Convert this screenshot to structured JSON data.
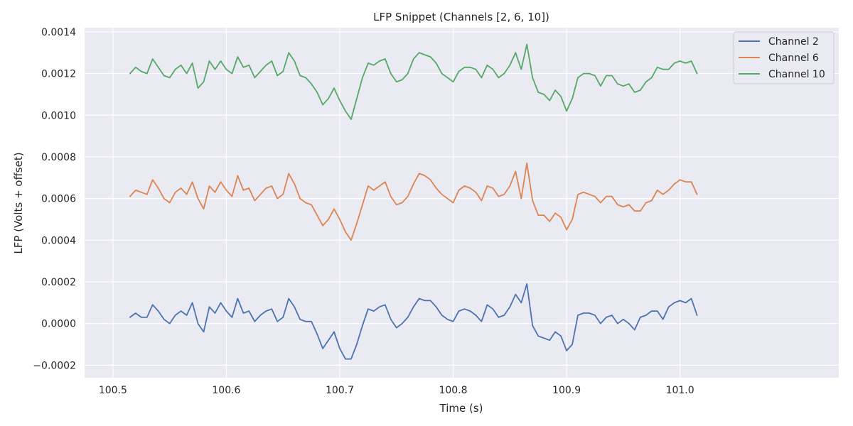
{
  "chart_data": {
    "type": "line",
    "title": "LFP Snippet (Channels [2, 6, 10])",
    "xlabel": "Time (s)",
    "ylabel": "LFP (Volts + offset)",
    "xlim": [
      100.475,
      101.14
    ],
    "ylim": [
      -0.00026,
      0.00142
    ],
    "xticks": [
      100.5,
      100.6,
      100.7,
      100.8,
      100.9,
      101.0
    ],
    "xtick_labels": [
      "100.5",
      "100.6",
      "100.7",
      "100.8",
      "100.9",
      "101.0"
    ],
    "yticks": [
      -0.0002,
      0.0,
      0.0002,
      0.0004,
      0.0006,
      0.0008,
      0.001,
      0.0012,
      0.0014
    ],
    "ytick_labels": [
      "−0.0002",
      "0.0000",
      "0.0002",
      "0.0004",
      "0.0006",
      "0.0008",
      "0.0010",
      "0.0012",
      "0.0014"
    ],
    "grid": true,
    "legend_position": "top-right",
    "background": "#eaeaf2",
    "series": [
      {
        "name": "Channel 2",
        "color": "#4c72b0",
        "x": [
          100.515,
          100.52,
          100.525,
          100.53,
          100.535,
          100.54,
          100.545,
          100.55,
          100.555,
          100.56,
          100.565,
          100.57,
          100.575,
          100.58,
          100.585,
          100.59,
          100.595,
          100.6,
          100.605,
          100.61,
          100.615,
          100.62,
          100.625,
          100.63,
          100.635,
          100.64,
          100.645,
          100.65,
          100.655,
          100.66,
          100.665,
          100.67,
          100.675,
          100.68,
          100.685,
          100.69,
          100.695,
          100.7,
          100.705,
          100.71,
          100.715,
          100.72,
          100.725,
          100.73,
          100.735,
          100.74,
          100.745,
          100.75,
          100.755,
          100.76,
          100.765,
          100.77,
          100.775,
          100.78,
          100.785,
          100.79,
          100.795,
          100.8,
          100.805,
          100.81,
          100.815,
          100.82,
          100.825,
          100.83,
          100.835,
          100.84,
          100.845,
          100.85,
          100.855,
          100.86,
          100.865,
          100.87,
          100.875,
          100.88,
          100.885,
          100.89,
          100.895,
          100.9,
          100.905,
          100.91,
          100.915,
          100.92,
          100.925,
          100.93,
          100.935,
          100.94,
          100.945,
          100.95,
          100.955,
          100.96,
          100.965,
          100.97,
          100.975,
          100.98,
          100.985,
          100.99,
          100.995,
          101.0,
          101.005,
          101.01,
          101.015
        ],
        "values": [
          3e-05,
          5e-05,
          3e-05,
          3e-05,
          9e-05,
          6e-05,
          2e-05,
          0.0,
          4e-05,
          6e-05,
          4e-05,
          0.0001,
          0.0,
          -4e-05,
          8e-05,
          5e-05,
          0.0001,
          6e-05,
          3e-05,
          0.00012,
          5e-05,
          6e-05,
          1e-05,
          4e-05,
          6e-05,
          7e-05,
          1e-05,
          3e-05,
          0.00012,
          8e-05,
          2e-05,
          1e-05,
          1e-05,
          -5e-05,
          -0.00012,
          -8e-05,
          -4e-05,
          -0.00012,
          -0.00017,
          -0.00017,
          -0.0001,
          -1e-05,
          7e-05,
          6e-05,
          8e-05,
          9e-05,
          2e-05,
          -2e-05,
          0.0,
          3e-05,
          8e-05,
          0.00012,
          0.00011,
          0.00011,
          8e-05,
          4e-05,
          2e-05,
          1e-05,
          6e-05,
          7e-05,
          6e-05,
          4e-05,
          1e-05,
          9e-05,
          7e-05,
          3e-05,
          4e-05,
          8e-05,
          0.00014,
          0.0001,
          0.00019,
          -1e-05,
          -6e-05,
          -7e-05,
          -8e-05,
          -4e-05,
          -6e-05,
          -0.00013,
          -0.0001,
          4e-05,
          5e-05,
          5e-05,
          4e-05,
          0.0,
          3e-05,
          4e-05,
          0.0,
          2e-05,
          0.0,
          -3e-05,
          3e-05,
          4e-05,
          6e-05,
          6e-05,
          2e-05,
          8e-05,
          0.0001,
          0.00011,
          0.0001,
          0.00012,
          4e-05
        ]
      },
      {
        "name": "Channel 6",
        "color": "#dd8452",
        "x": [
          100.515,
          100.52,
          100.525,
          100.53,
          100.535,
          100.54,
          100.545,
          100.55,
          100.555,
          100.56,
          100.565,
          100.57,
          100.575,
          100.58,
          100.585,
          100.59,
          100.595,
          100.6,
          100.605,
          100.61,
          100.615,
          100.62,
          100.625,
          100.63,
          100.635,
          100.64,
          100.645,
          100.65,
          100.655,
          100.66,
          100.665,
          100.67,
          100.675,
          100.68,
          100.685,
          100.69,
          100.695,
          100.7,
          100.705,
          100.71,
          100.715,
          100.72,
          100.725,
          100.73,
          100.735,
          100.74,
          100.745,
          100.75,
          100.755,
          100.76,
          100.765,
          100.77,
          100.775,
          100.78,
          100.785,
          100.79,
          100.795,
          100.8,
          100.805,
          100.81,
          100.815,
          100.82,
          100.825,
          100.83,
          100.835,
          100.84,
          100.845,
          100.85,
          100.855,
          100.86,
          100.865,
          100.87,
          100.875,
          100.88,
          100.885,
          100.89,
          100.895,
          100.9,
          100.905,
          100.91,
          100.915,
          100.92,
          100.925,
          100.93,
          100.935,
          100.94,
          100.945,
          100.95,
          100.955,
          100.96,
          100.965,
          100.97,
          100.975,
          100.98,
          100.985,
          100.99,
          100.995,
          101.0,
          101.005,
          101.01,
          101.015
        ],
        "values": [
          0.00061,
          0.00064,
          0.00063,
          0.00062,
          0.00069,
          0.00065,
          0.0006,
          0.00058,
          0.00063,
          0.00065,
          0.00062,
          0.00068,
          0.0006,
          0.00055,
          0.00066,
          0.00063,
          0.00068,
          0.00064,
          0.00061,
          0.00071,
          0.00064,
          0.00065,
          0.00059,
          0.00062,
          0.00065,
          0.00066,
          0.0006,
          0.00062,
          0.00072,
          0.00067,
          0.0006,
          0.00058,
          0.00057,
          0.00052,
          0.00047,
          0.0005,
          0.00055,
          0.0005,
          0.00044,
          0.0004,
          0.00048,
          0.00057,
          0.00066,
          0.00064,
          0.00066,
          0.00068,
          0.00061,
          0.00057,
          0.00058,
          0.00061,
          0.00067,
          0.00072,
          0.00071,
          0.00069,
          0.00065,
          0.00062,
          0.0006,
          0.00058,
          0.00064,
          0.00066,
          0.00065,
          0.00063,
          0.00059,
          0.00066,
          0.00065,
          0.00061,
          0.00062,
          0.00066,
          0.00073,
          0.0006,
          0.00077,
          0.00059,
          0.00052,
          0.00052,
          0.00049,
          0.00053,
          0.00051,
          0.00045,
          0.0005,
          0.00062,
          0.00063,
          0.00062,
          0.00061,
          0.00058,
          0.00061,
          0.00061,
          0.00057,
          0.00056,
          0.00057,
          0.00054,
          0.00054,
          0.00058,
          0.00059,
          0.00064,
          0.00062,
          0.00064,
          0.00067,
          0.00069,
          0.00068,
          0.00068,
          0.00062
        ]
      },
      {
        "name": "Channel 10",
        "color": "#55a868",
        "x": [
          100.515,
          100.52,
          100.525,
          100.53,
          100.535,
          100.54,
          100.545,
          100.55,
          100.555,
          100.56,
          100.565,
          100.57,
          100.575,
          100.58,
          100.585,
          100.59,
          100.595,
          100.6,
          100.605,
          100.61,
          100.615,
          100.62,
          100.625,
          100.63,
          100.635,
          100.64,
          100.645,
          100.65,
          100.655,
          100.66,
          100.665,
          100.67,
          100.675,
          100.68,
          100.685,
          100.69,
          100.695,
          100.7,
          100.705,
          100.71,
          100.715,
          100.72,
          100.725,
          100.73,
          100.735,
          100.74,
          100.745,
          100.75,
          100.755,
          100.76,
          100.765,
          100.77,
          100.775,
          100.78,
          100.785,
          100.79,
          100.795,
          100.8,
          100.805,
          100.81,
          100.815,
          100.82,
          100.825,
          100.83,
          100.835,
          100.84,
          100.845,
          100.85,
          100.855,
          100.86,
          100.865,
          100.87,
          100.875,
          100.88,
          100.885,
          100.89,
          100.895,
          100.9,
          100.905,
          100.91,
          100.915,
          100.92,
          100.925,
          100.93,
          100.935,
          100.94,
          100.945,
          100.95,
          100.955,
          100.96,
          100.965,
          100.97,
          100.975,
          100.98,
          100.985,
          100.99,
          100.995,
          101.0,
          101.005,
          101.01,
          101.015
        ],
        "values": [
          0.0012,
          0.00123,
          0.00121,
          0.0012,
          0.00127,
          0.00123,
          0.00119,
          0.00118,
          0.00122,
          0.00124,
          0.0012,
          0.00125,
          0.00113,
          0.00116,
          0.00126,
          0.00122,
          0.00126,
          0.00122,
          0.0012,
          0.00128,
          0.00123,
          0.00124,
          0.00118,
          0.00121,
          0.00124,
          0.00126,
          0.00119,
          0.00121,
          0.0013,
          0.00126,
          0.00119,
          0.00118,
          0.00115,
          0.00111,
          0.00105,
          0.00108,
          0.00113,
          0.00107,
          0.00102,
          0.00098,
          0.00108,
          0.00118,
          0.00125,
          0.00124,
          0.00126,
          0.00127,
          0.0012,
          0.00116,
          0.00117,
          0.0012,
          0.00127,
          0.0013,
          0.00129,
          0.00128,
          0.00125,
          0.0012,
          0.00118,
          0.00116,
          0.00121,
          0.00123,
          0.00123,
          0.00122,
          0.00118,
          0.00124,
          0.00122,
          0.00118,
          0.0012,
          0.00124,
          0.0013,
          0.00122,
          0.00134,
          0.00118,
          0.00111,
          0.0011,
          0.00107,
          0.00112,
          0.00109,
          0.00102,
          0.00108,
          0.00118,
          0.0012,
          0.0012,
          0.00119,
          0.00114,
          0.00119,
          0.00119,
          0.00115,
          0.00114,
          0.00115,
          0.00111,
          0.00112,
          0.00116,
          0.00118,
          0.00123,
          0.00122,
          0.00122,
          0.00125,
          0.00126,
          0.00125,
          0.00126,
          0.0012
        ]
      }
    ]
  }
}
